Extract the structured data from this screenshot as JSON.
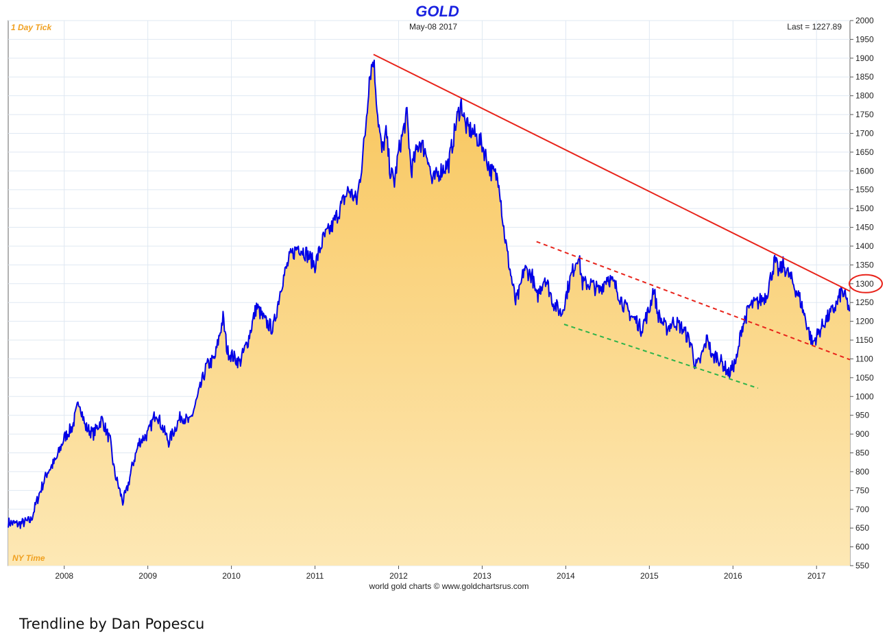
{
  "chart_data": {
    "type": "area",
    "title": "GOLD",
    "date_label": "May-08  2017",
    "last_label": "Last = 1227.89",
    "top_left_label": "1 Day Tick",
    "bottom_left_label": "NY Time",
    "footer": "world gold charts © www.goldchartsrus.com",
    "xlabel": "",
    "ylabel": "",
    "x_range": [
      2007.33,
      2017.4
    ],
    "ylim": [
      550,
      2000
    ],
    "y_ticks": [
      550,
      600,
      650,
      700,
      750,
      800,
      850,
      900,
      950,
      1000,
      1050,
      1100,
      1150,
      1200,
      1250,
      1300,
      1350,
      1400,
      1450,
      1500,
      1550,
      1600,
      1650,
      1700,
      1750,
      1800,
      1850,
      1900,
      1950,
      2000
    ],
    "x_ticks": [
      {
        "value": 2008.0,
        "label": "2008"
      },
      {
        "value": 2009.0,
        "label": "2009"
      },
      {
        "value": 2010.0,
        "label": "2010"
      },
      {
        "value": 2011.0,
        "label": "2011"
      },
      {
        "value": 2012.0,
        "label": "2012"
      },
      {
        "value": 2013.0,
        "label": "2013"
      },
      {
        "value": 2014.0,
        "label": "2014"
      },
      {
        "value": 2015.0,
        "label": "2015"
      },
      {
        "value": 2016.0,
        "label": "2016"
      },
      {
        "value": 2017.0,
        "label": "2017"
      }
    ],
    "grid": true,
    "series": [
      {
        "color": "#0000e6",
        "fill": "#fbd98c",
        "x": [
          2007.33,
          2007.45,
          2007.6,
          2007.7,
          2007.8,
          2007.9,
          2008.0,
          2008.1,
          2008.18,
          2008.25,
          2008.35,
          2008.45,
          2008.55,
          2008.6,
          2008.7,
          2008.75,
          2008.82,
          2008.9,
          2009.0,
          2009.1,
          2009.15,
          2009.25,
          2009.4,
          2009.5,
          2009.6,
          2009.7,
          2009.8,
          2009.9,
          2009.95,
          2010.05,
          2010.1,
          2010.2,
          2010.3,
          2010.4,
          2010.5,
          2010.55,
          2010.6,
          2010.7,
          2010.8,
          2010.9,
          2011.0,
          2011.1,
          2011.2,
          2011.3,
          2011.4,
          2011.5,
          2011.55,
          2011.6,
          2011.65,
          2011.7,
          2011.75,
          2011.8,
          2011.85,
          2011.9,
          2011.95,
          2012.0,
          2012.1,
          2012.15,
          2012.25,
          2012.35,
          2012.4,
          2012.5,
          2012.6,
          2012.7,
          2012.75,
          2012.8,
          2012.9,
          2013.0,
          2013.1,
          2013.2,
          2013.25,
          2013.3,
          2013.4,
          2013.45,
          2013.5,
          2013.6,
          2013.65,
          2013.75,
          2013.85,
          2013.95,
          2014.05,
          2014.15,
          2014.2,
          2014.3,
          2014.4,
          2014.5,
          2014.6,
          2014.7,
          2014.8,
          2014.85,
          2014.9,
          2015.0,
          2015.05,
          2015.1,
          2015.2,
          2015.3,
          2015.4,
          2015.5,
          2015.55,
          2015.6,
          2015.7,
          2015.75,
          2015.8,
          2015.9,
          2015.95,
          2016.05,
          2016.1,
          2016.2,
          2016.3,
          2016.4,
          2016.5,
          2016.55,
          2016.6,
          2016.7,
          2016.8,
          2016.85,
          2016.9,
          2016.95,
          2017.0,
          2017.1,
          2017.2,
          2017.25,
          2017.3,
          2017.35,
          2017.4
        ],
        "y": [
          665,
          660,
          670,
          740,
          800,
          830,
          890,
          920,
          990,
          920,
          900,
          940,
          880,
          800,
          720,
          750,
          820,
          880,
          900,
          960,
          930,
          880,
          950,
          930,
          1000,
          1080,
          1100,
          1210,
          1120,
          1100,
          1090,
          1150,
          1240,
          1200,
          1180,
          1240,
          1300,
          1370,
          1400,
          1380,
          1350,
          1420,
          1450,
          1500,
          1550,
          1520,
          1600,
          1700,
          1850,
          1900,
          1750,
          1650,
          1700,
          1600,
          1570,
          1650,
          1750,
          1600,
          1680,
          1640,
          1570,
          1600,
          1620,
          1740,
          1780,
          1720,
          1700,
          1670,
          1600,
          1580,
          1460,
          1380,
          1250,
          1280,
          1340,
          1320,
          1260,
          1320,
          1250,
          1220,
          1310,
          1380,
          1300,
          1300,
          1280,
          1320,
          1290,
          1240,
          1210,
          1200,
          1180,
          1230,
          1290,
          1220,
          1180,
          1200,
          1180,
          1140,
          1080,
          1090,
          1160,
          1100,
          1110,
          1080,
          1060,
          1100,
          1180,
          1240,
          1250,
          1270,
          1360,
          1330,
          1350,
          1310,
          1260,
          1220,
          1180,
          1140,
          1160,
          1200,
          1230,
          1250,
          1280,
          1260,
          1228
        ]
      }
    ],
    "trendlines": [
      {
        "x": [
          2011.7,
          2017.4
        ],
        "y": [
          1910,
          1280
        ],
        "color": "#e8231a",
        "style": "solid"
      },
      {
        "x": [
          2013.65,
          2017.4
        ],
        "y": [
          1412,
          1098
        ],
        "color": "#e8231a",
        "style": "dashed"
      },
      {
        "x": [
          2013.98,
          2016.3
        ],
        "y": [
          1192,
          1022
        ],
        "color": "#2db34a",
        "style": "dashed"
      }
    ],
    "highlight": {
      "value": 1300,
      "color": "#e8231a"
    }
  },
  "caption": "Trendline by Dan Popescu"
}
